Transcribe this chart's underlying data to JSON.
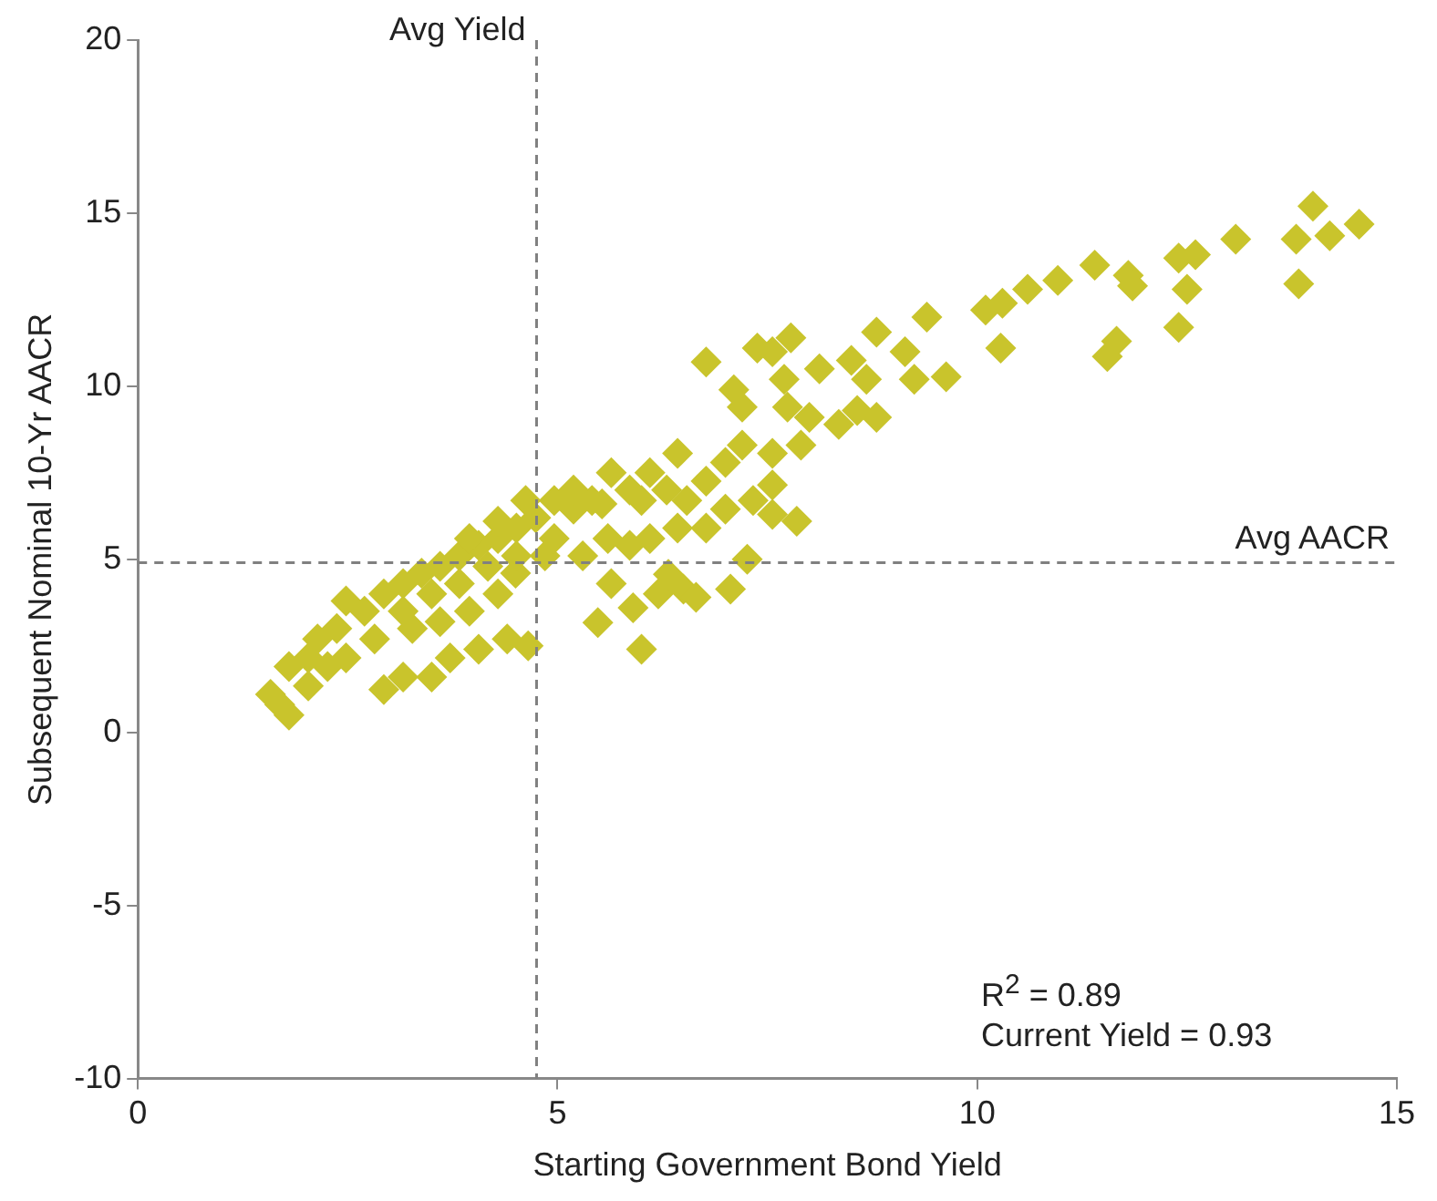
{
  "chart_data": {
    "type": "scatter",
    "xlabel": "Starting Government Bond Yield",
    "ylabel": "Subsequent Nominal 10-Yr AACR",
    "xlim": [
      0,
      15
    ],
    "xticks": [
      0,
      5,
      10,
      15
    ],
    "ylim": [
      -10,
      20
    ],
    "yticks": [
      -10,
      -5,
      0,
      5,
      10,
      15,
      20
    ],
    "grid": false,
    "legend": false,
    "marker": "diamond",
    "series": [
      {
        "color": "#c9c42c",
        "x": [
          14.55,
          14.0,
          14.2,
          13.8,
          13.83,
          13.08,
          12.6,
          12.4,
          12.5,
          12.4,
          11.8,
          11.4,
          11.85,
          11.66,
          11.55,
          10.96,
          10.6,
          10.3,
          10.1,
          10.28,
          9.63,
          9.4,
          9.25,
          9.14,
          8.8,
          8.68,
          8.5,
          8.12,
          7.78,
          7.56,
          7.38,
          6.77,
          7.7,
          7.1,
          7.2,
          7.74,
          8.0,
          8.35,
          8.57,
          8.8,
          7.9,
          7.56,
          7.2,
          7.0,
          6.77,
          6.43,
          6.1,
          5.86,
          5.64,
          5.41,
          5.19,
          4.96,
          4.74,
          4.51,
          4.29,
          4.06,
          3.83,
          3.6,
          3.38,
          3.16,
          2.93,
          2.7,
          2.48,
          2.37,
          2.14,
          2.03,
          1.8,
          1.58,
          1.69,
          1.8,
          2.03,
          2.26,
          2.48,
          2.82,
          2.93,
          3.16,
          3.5,
          3.72,
          4.06,
          4.4,
          4.65,
          3.27,
          3.6,
          3.95,
          4.29,
          4.5,
          4.85,
          3.16,
          3.5,
          3.83,
          4.17,
          4.51,
          3.95,
          4.29,
          4.62,
          5.19,
          5.53,
          6.0,
          6.3,
          6.54,
          6.77,
          7.0,
          7.33,
          7.56,
          7.85,
          7.56,
          6.1,
          6.43,
          5.86,
          5.48,
          5.9,
          6.0,
          6.2,
          6.5,
          6.65,
          7.06,
          7.26,
          6.32,
          5.64,
          5.3,
          5.6,
          4.96
        ],
        "values": [
          14.68,
          15.2,
          14.35,
          14.25,
          12.96,
          14.25,
          13.8,
          13.7,
          12.8,
          11.7,
          13.2,
          13.5,
          12.9,
          11.3,
          10.86,
          13.06,
          12.8,
          12.4,
          12.2,
          11.1,
          10.27,
          12.0,
          10.2,
          11.0,
          11.56,
          10.2,
          10.75,
          10.5,
          11.4,
          11.0,
          11.1,
          10.7,
          10.2,
          9.9,
          9.4,
          9.4,
          9.1,
          8.9,
          9.3,
          9.1,
          8.3,
          8.06,
          8.3,
          7.8,
          7.26,
          8.06,
          7.5,
          7.0,
          7.5,
          6.7,
          6.45,
          6.7,
          6.2,
          5.9,
          5.6,
          5.4,
          5.1,
          4.8,
          4.6,
          4.3,
          4.0,
          3.5,
          3.8,
          3.0,
          2.7,
          2.15,
          1.9,
          1.1,
          0.8,
          0.5,
          1.34,
          1.9,
          2.15,
          2.7,
          1.24,
          1.6,
          1.6,
          2.15,
          2.4,
          2.7,
          2.5,
          3.0,
          3.2,
          3.5,
          4.0,
          4.6,
          5.1,
          3.5,
          4.0,
          4.3,
          4.8,
          5.1,
          5.6,
          6.1,
          6.7,
          7.0,
          6.6,
          6.7,
          7.0,
          6.7,
          5.9,
          6.45,
          6.7,
          7.15,
          6.1,
          6.3,
          5.6,
          5.9,
          5.4,
          3.17,
          3.6,
          2.4,
          4.0,
          4.14,
          3.9,
          4.14,
          5.0,
          4.57,
          4.3,
          5.1,
          5.6,
          5.6
        ]
      }
    ],
    "ref_lines": [
      {
        "axis": "x",
        "value": 4.75,
        "label": "Avg Yield",
        "color": "#808080",
        "line_style": "dashed"
      },
      {
        "axis": "y",
        "value": 4.9,
        "label": "Avg AACR",
        "color": "#808080",
        "line_style": "dashed"
      }
    ],
    "annotations": [
      "R$^{2}$ = 0.89",
      "Current Yield = 0.93"
    ]
  }
}
